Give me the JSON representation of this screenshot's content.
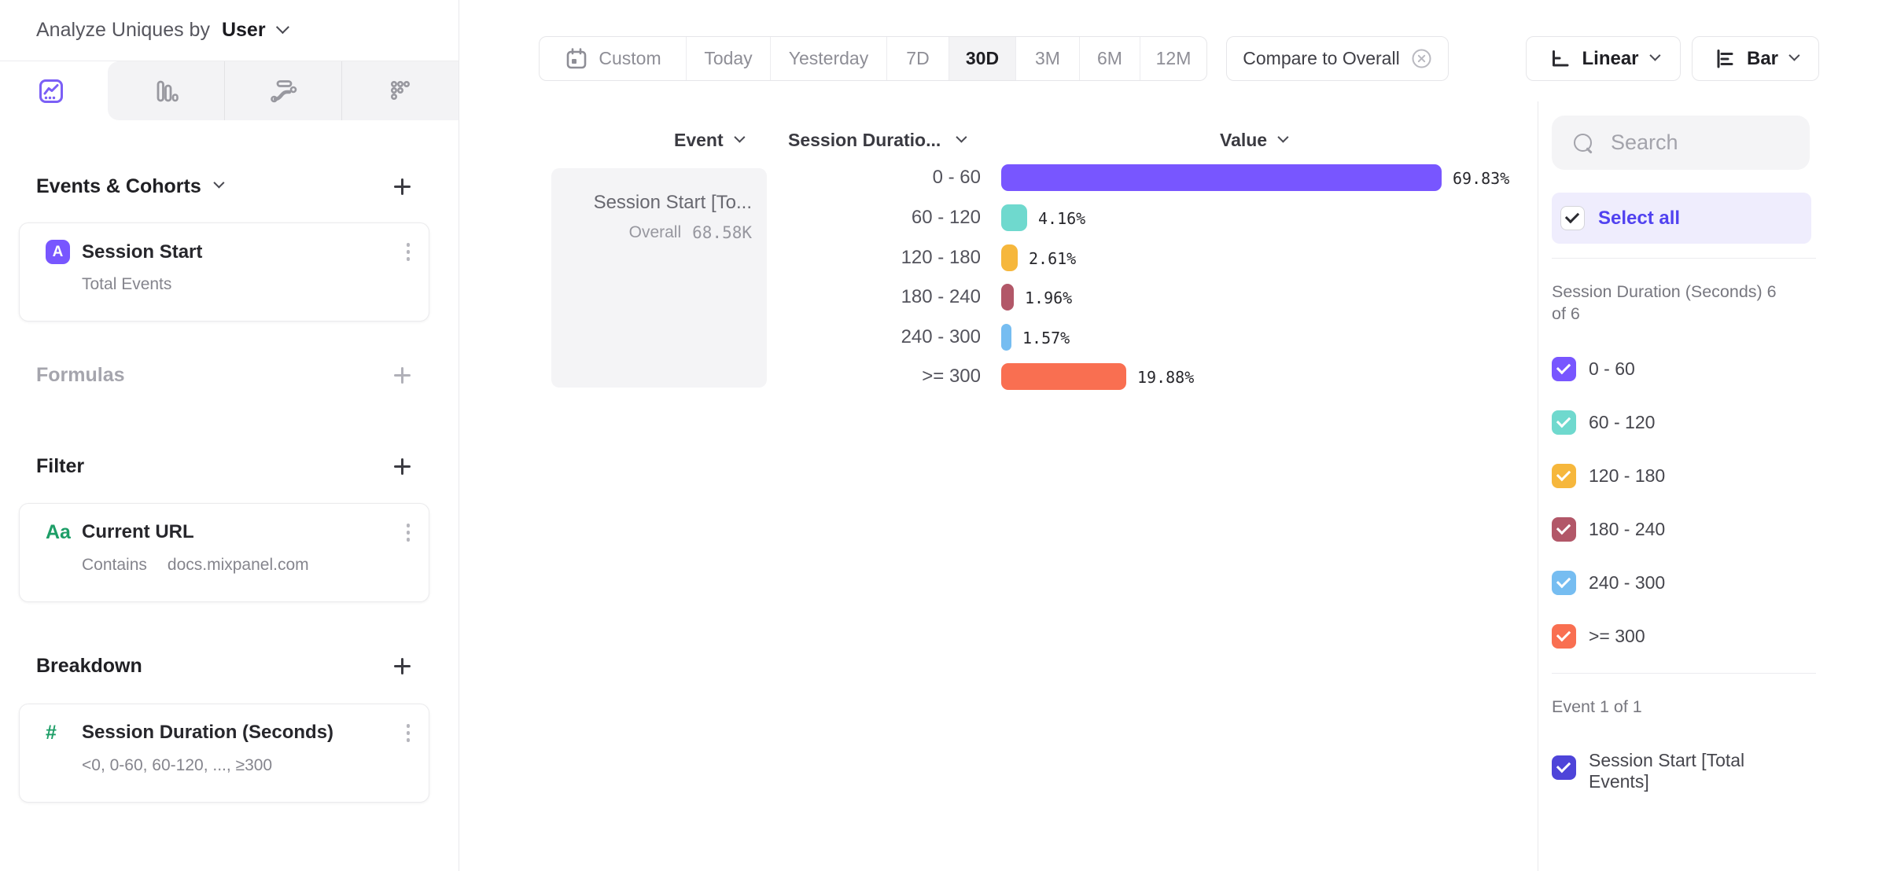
{
  "left_panel": {
    "analyze_label": "Analyze Uniques by",
    "analyze_value": "User",
    "tabs": [
      {
        "name": "insights",
        "selected": true
      },
      {
        "name": "funnels",
        "selected": false
      },
      {
        "name": "flows",
        "selected": false
      },
      {
        "name": "retention",
        "selected": false
      }
    ],
    "events_section": {
      "title": "Events & Cohorts"
    },
    "event_card": {
      "badge": "A",
      "title": "Session Start",
      "subtitle": "Total Events"
    },
    "formulas_section": {
      "title": "Formulas"
    },
    "filter_section": {
      "title": "Filter"
    },
    "filter_card": {
      "badge": "Aa",
      "title": "Current URL",
      "operator": "Contains",
      "value": "docs.mixpanel.com"
    },
    "breakdown_section": {
      "title": "Breakdown"
    },
    "breakdown_card": {
      "badge": "#",
      "title": "Session Duration (Seconds)",
      "subtitle": "<0, 0-60, 60-120, ..., ≥300"
    }
  },
  "toolbar": {
    "date_ranges": [
      "Custom",
      "Today",
      "Yesterday",
      "7D",
      "30D",
      "3M",
      "6M",
      "12M"
    ],
    "selected_range": "30D",
    "compare_label": "Compare to Overall",
    "scale_label": "Linear",
    "chart_type_label": "Bar"
  },
  "table": {
    "columns": [
      "Event",
      "Session Duratio...",
      "Value"
    ],
    "event_cell": {
      "title": "Session Start [To...",
      "overall_label": "Overall",
      "overall_value": "68.58K"
    }
  },
  "chart_data": {
    "type": "bar",
    "orientation": "horizontal",
    "series_name": "Session Start [Total Events]",
    "overall_value": "68.58K",
    "categories": [
      "0 - 60",
      "60 - 120",
      "120 - 180",
      "180 - 240",
      "240 - 300",
      ">= 300"
    ],
    "values": [
      69.83,
      4.16,
      2.61,
      1.96,
      1.57,
      19.88
    ],
    "value_labels": [
      "69.83%",
      "4.16%",
      "2.61%",
      "1.96%",
      "1.57%",
      "19.88%"
    ],
    "colors": [
      "#7856FF",
      "#6FD9CE",
      "#F6B73C",
      "#B25768",
      "#76BDF1",
      "#F96F51"
    ],
    "xlim": [
      0,
      100
    ],
    "unit": "%",
    "legend_position": "right-sidebar",
    "grid": false
  },
  "sidebar": {
    "search_placeholder": "Search",
    "select_all_label": "Select all",
    "groups": [
      {
        "header": "Session Duration (Seconds) 6 of 6",
        "items": [
          {
            "label": "0 - 60",
            "color": "#7856FF",
            "checked": true
          },
          {
            "label": "60 - 120",
            "color": "#6FD9CE",
            "checked": true
          },
          {
            "label": "120 - 180",
            "color": "#F6B73C",
            "checked": true
          },
          {
            "label": "180 - 240",
            "color": "#B25768",
            "checked": true
          },
          {
            "label": "240 - 300",
            "color": "#76BDF1",
            "checked": true
          },
          {
            "label": ">= 300",
            "color": "#F96F51",
            "checked": true
          }
        ]
      },
      {
        "header": "Event 1 of 1",
        "items": [
          {
            "label": "Session Start [Total Events]",
            "color": "#4E44D9",
            "checked": true
          }
        ]
      }
    ]
  },
  "colors": {
    "accent_purple": "#7856FF",
    "select_all_text": "#5142F0",
    "badge_green": "#1D9E67",
    "event_checkbox": "#4E44D9"
  }
}
